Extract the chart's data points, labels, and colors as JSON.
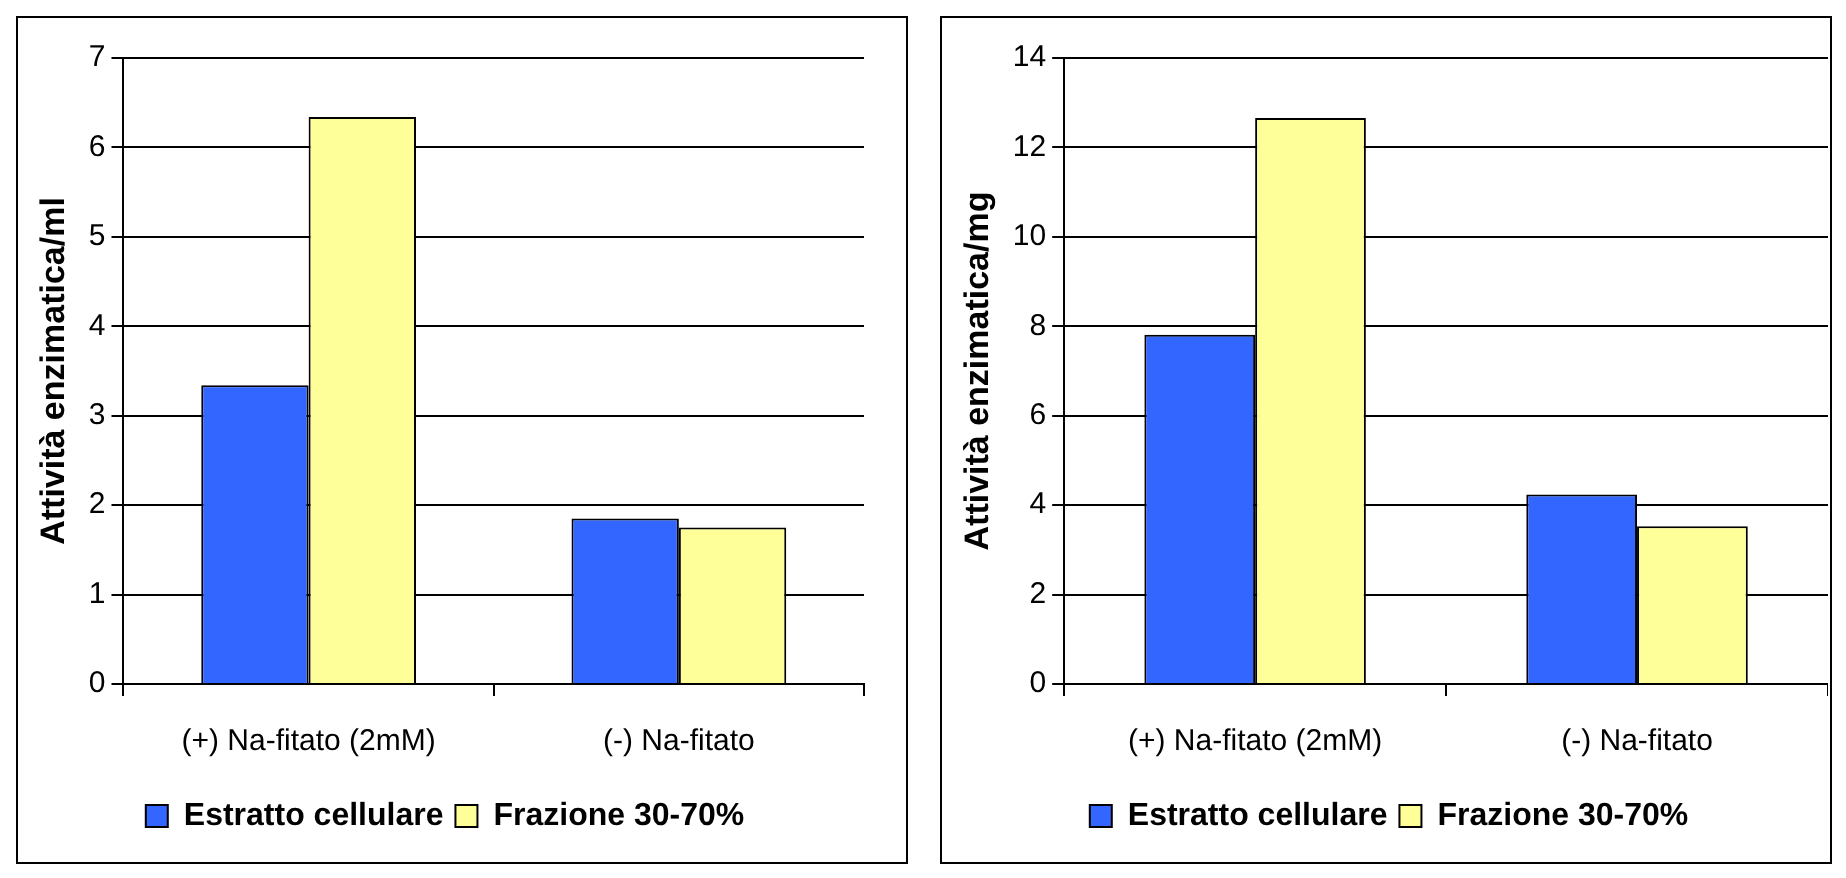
{
  "chart_data": [
    {
      "type": "bar",
      "ylabel": "Attività enzimatica/ml",
      "categories": [
        "(+) Na-fitato (2mM)",
        "(-) Na-fitato"
      ],
      "series": [
        {
          "name": "Estratto cellulare",
          "color": "#3366ff",
          "values": [
            3.34,
            1.85
          ]
        },
        {
          "name": "Frazione 30-70%",
          "color": "#ffff99",
          "values": [
            6.34,
            1.75
          ]
        }
      ],
      "ylim": [
        0,
        7
      ],
      "yticks": [
        0,
        1,
        2,
        3,
        4,
        5,
        6,
        7
      ],
      "grid": "y",
      "legend": "bottom"
    },
    {
      "type": "bar",
      "ylabel": "Attività enzimatica/mg",
      "categories": [
        "(+) Na-fitato (2mM)",
        "(-) Na-fitato"
      ],
      "series": [
        {
          "name": "Estratto cellulare",
          "color": "#3366ff",
          "values": [
            7.81,
            4.24
          ]
        },
        {
          "name": "Frazione 30-70%",
          "color": "#ffff99",
          "values": [
            12.66,
            3.53
          ]
        }
      ],
      "ylim": [
        0,
        14
      ],
      "yticks": [
        0,
        2,
        4,
        6,
        8,
        10,
        12,
        14
      ],
      "grid": "y",
      "legend": "bottom"
    }
  ]
}
